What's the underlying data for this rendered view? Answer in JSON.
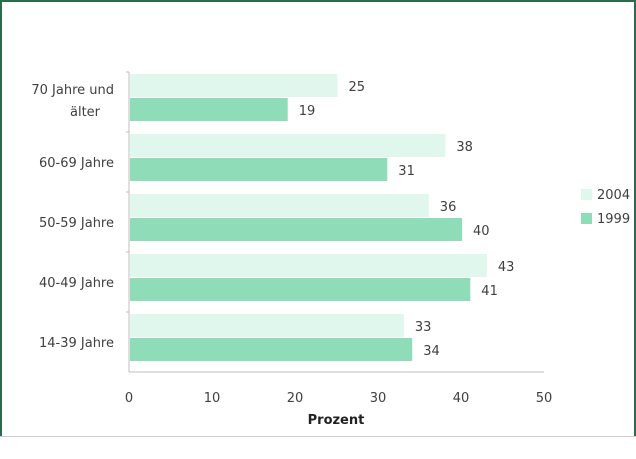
{
  "chart_data": {
    "type": "bar",
    "orientation": "horizontal",
    "categories": [
      [
        "70 Jahre und",
        "älter"
      ],
      [
        "60-69 Jahre"
      ],
      [
        "50-59 Jahre"
      ],
      [
        "40-49 Jahre"
      ],
      [
        "14-39 Jahre"
      ]
    ],
    "series": [
      {
        "name": "2004",
        "values": [
          25,
          38,
          36,
          43,
          33
        ],
        "color": "#e0f7ee"
      },
      {
        "name": "1999",
        "values": [
          19,
          31,
          40,
          41,
          34
        ],
        "color": "#8fdcb9"
      }
    ],
    "xlabel": "Prozent",
    "xlim": [
      0,
      50
    ],
    "xticks": [
      "0",
      "10",
      "20",
      "30",
      "40",
      "50"
    ],
    "legend": "right",
    "grid": false
  }
}
